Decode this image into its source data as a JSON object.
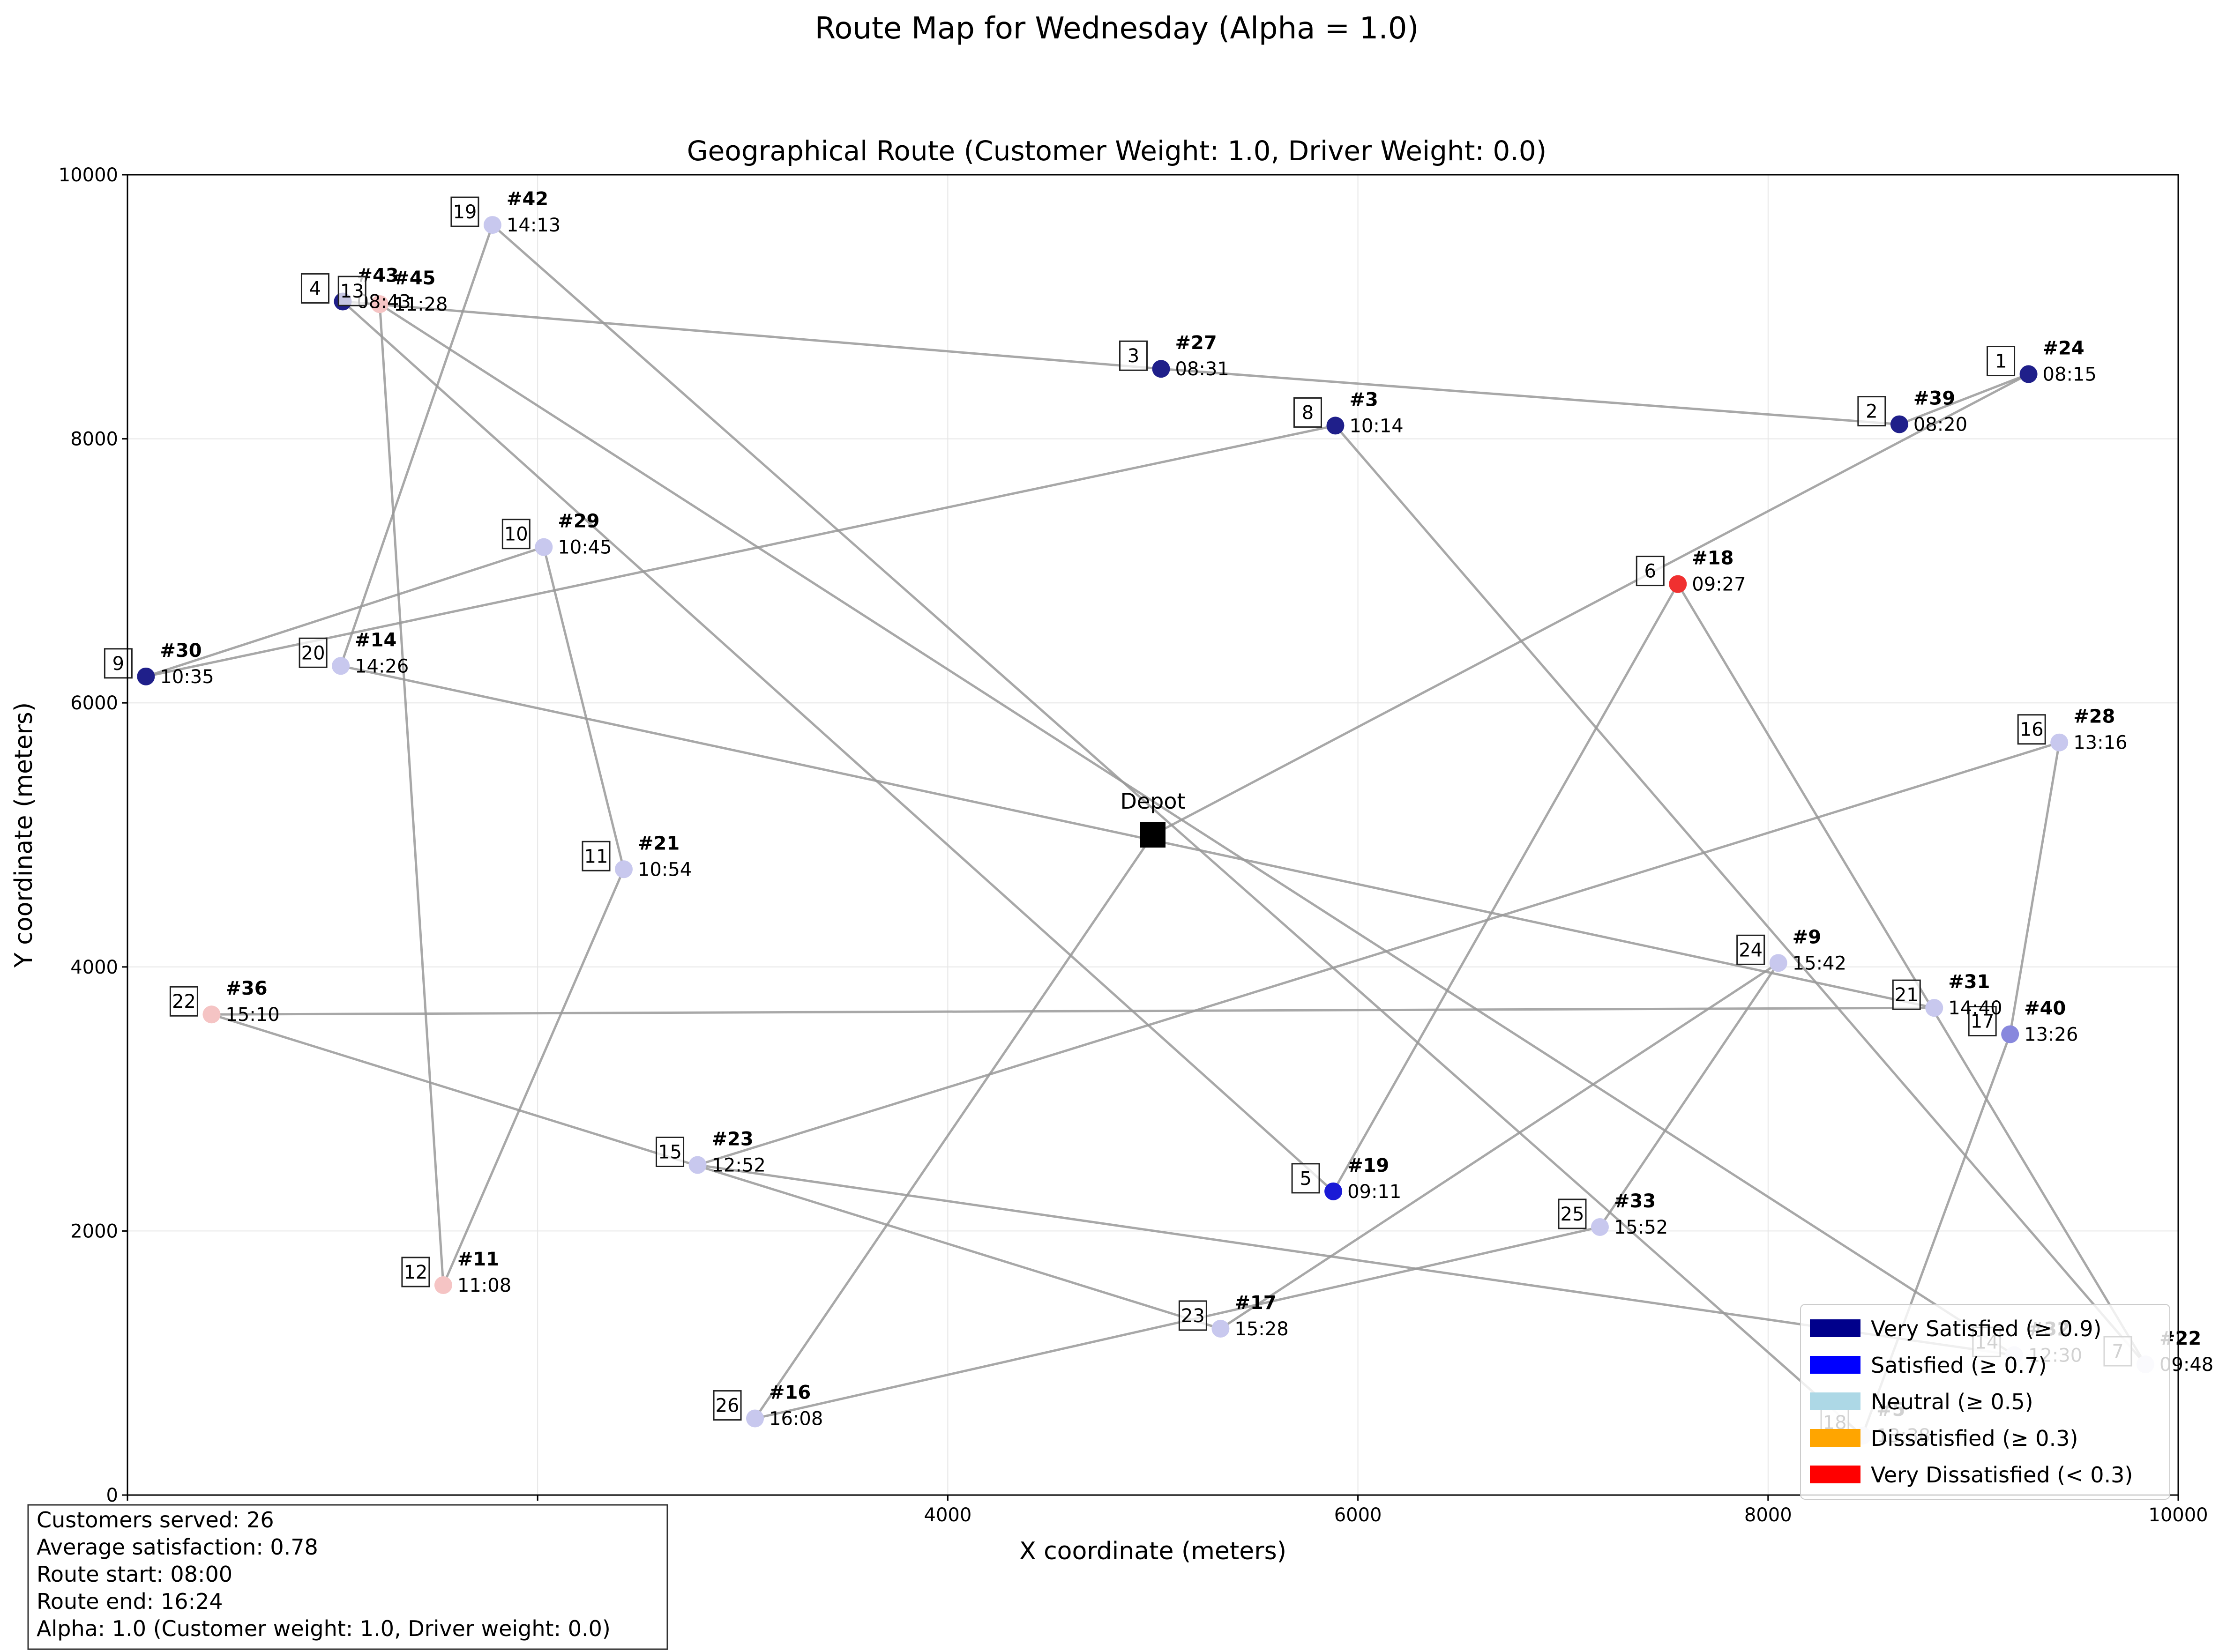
{
  "suptitle": "Route Map for Wednesday (Alpha = 1.0)",
  "chart_data": {
    "type": "scatter",
    "title": "Geographical Route (Customer Weight: 1.0, Driver Weight: 0.0)",
    "xlabel": "X coordinate (meters)",
    "ylabel": "Y coordinate (meters)",
    "xlim": [
      0,
      10000
    ],
    "ylim": [
      0,
      10000
    ],
    "xticks": [
      0,
      2000,
      4000,
      6000,
      8000,
      10000
    ],
    "yticks": [
      0,
      2000,
      4000,
      6000,
      8000,
      10000
    ],
    "grid": true,
    "route_color": "#999999",
    "depot": {
      "label": "Depot",
      "x": 5000,
      "y": 5000
    },
    "stops": [
      {
        "seq": 1,
        "cust": "#24",
        "time": "08:15",
        "x": 9270,
        "y": 8490,
        "color": "#1f1f8a"
      },
      {
        "seq": 2,
        "cust": "#39",
        "time": "08:20",
        "x": 8640,
        "y": 8110,
        "color": "#1f1f8a"
      },
      {
        "seq": 3,
        "cust": "#27",
        "time": "08:31",
        "x": 5040,
        "y": 8530,
        "color": "#1f1f8a"
      },
      {
        "seq": 4,
        "cust": "#43",
        "time": "08:43",
        "x": 1050,
        "y": 9040,
        "color": "#1f1f8a"
      },
      {
        "seq": 5,
        "cust": "#19",
        "time": "09:11",
        "x": 5880,
        "y": 2300,
        "color": "#1a1ad6"
      },
      {
        "seq": 6,
        "cust": "#18",
        "time": "09:27",
        "x": 7560,
        "y": 6900,
        "color": "#f03030"
      },
      {
        "seq": 7,
        "cust": "#22",
        "time": "09:48",
        "x": 9840,
        "y": 990,
        "color": "#e0e0f2"
      },
      {
        "seq": 8,
        "cust": "#3",
        "time": "10:14",
        "x": 5890,
        "y": 8100,
        "color": "#1f1f8a"
      },
      {
        "seq": 9,
        "cust": "#30",
        "time": "10:35",
        "x": 90,
        "y": 6200,
        "color": "#1f1f8a"
      },
      {
        "seq": 10,
        "cust": "#29",
        "time": "10:45",
        "x": 2030,
        "y": 7180,
        "color": "#c8c8ee"
      },
      {
        "seq": 11,
        "cust": "#21",
        "time": "10:54",
        "x": 2420,
        "y": 4740,
        "color": "#c8c8ee"
      },
      {
        "seq": 12,
        "cust": "#11",
        "time": "11:08",
        "x": 1540,
        "y": 1590,
        "color": "#f5c4c4"
      },
      {
        "seq": 13,
        "cust": "#45",
        "time": "11:28",
        "x": 1230,
        "y": 9020,
        "color": "#f5c4c4"
      },
      {
        "seq": 14,
        "cust": "#32",
        "time": "12:30",
        "x": 9200,
        "y": 1060,
        "color": "#e0e0f2"
      },
      {
        "seq": 15,
        "cust": "#23",
        "time": "12:52",
        "x": 2780,
        "y": 2500,
        "color": "#c8c8ee"
      },
      {
        "seq": 16,
        "cust": "#28",
        "time": "13:16",
        "x": 9420,
        "y": 5700,
        "color": "#c8c8ee"
      },
      {
        "seq": 17,
        "cust": "#40",
        "time": "13:26",
        "x": 9180,
        "y": 3490,
        "color": "#8888dd"
      },
      {
        "seq": 18,
        "cust": "#5",
        "time": "13:38",
        "x": 8460,
        "y": 450,
        "color": "#e0e0f2"
      },
      {
        "seq": 19,
        "cust": "#42",
        "time": "14:13",
        "x": 1780,
        "y": 9620,
        "color": "#c8c8ee"
      },
      {
        "seq": 20,
        "cust": "#14",
        "time": "14:26",
        "x": 1040,
        "y": 6280,
        "color": "#c8c8ee"
      },
      {
        "seq": 21,
        "cust": "#31",
        "time": "14:40",
        "x": 8810,
        "y": 3690,
        "color": "#c8c8ee"
      },
      {
        "seq": 22,
        "cust": "#36",
        "time": "15:10",
        "x": 410,
        "y": 3640,
        "color": "#f5c4c4"
      },
      {
        "seq": 23,
        "cust": "#17",
        "time": "15:28",
        "x": 5330,
        "y": 1260,
        "color": "#c8c8ee"
      },
      {
        "seq": 24,
        "cust": "#9",
        "time": "15:42",
        "x": 8050,
        "y": 4030,
        "color": "#c8c8ee"
      },
      {
        "seq": 25,
        "cust": "#33",
        "time": "15:52",
        "x": 7180,
        "y": 2030,
        "color": "#c8c8ee"
      },
      {
        "seq": 26,
        "cust": "#16",
        "time": "16:08",
        "x": 3060,
        "y": 580,
        "color": "#c8c8ee"
      }
    ],
    "legend": {
      "placement": "lower-right",
      "items": [
        {
          "label": "Very Satisfied (≥ 0.9)",
          "color": "#00008b"
        },
        {
          "label": "Satisfied (≥ 0.7)",
          "color": "#0000ff"
        },
        {
          "label": "Neutral (≥ 0.5)",
          "color": "#add8e6"
        },
        {
          "label": "Dissatisfied (≥ 0.3)",
          "color": "#ffa500"
        },
        {
          "label": "Very Dissatisfied (< 0.3)",
          "color": "#ff0000"
        }
      ]
    }
  },
  "info": {
    "lines": [
      "Customers served: 26",
      "Average satisfaction: 0.78",
      "Route start: 08:00",
      "Route end: 16:24",
      "Alpha: 1.0 (Customer weight: 1.0, Driver weight: 0.0)"
    ]
  }
}
